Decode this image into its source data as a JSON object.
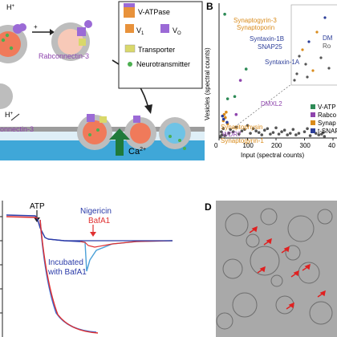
{
  "panelA": {
    "legend": {
      "vatpase": "V-ATPase",
      "v1": "V",
      "v1_sub": "1",
      "vo": "V",
      "vo_sub": "O",
      "transporter": "Transporter",
      "neurotransmitter": "Neurotransmitter"
    },
    "rabconnectin_label": "Rabconnectin-3",
    "rabconnectin_label2": "onnectin-3",
    "hplus": "H",
    "hplus_sup": "+",
    "hplus_top": "H",
    "hplus_top_sup": "+",
    "calcium": "Ca",
    "calcium_sup": "2+"
  },
  "panelB": {
    "letter": "B",
    "ylabel": "Vesicles (spectral counts)",
    "xlabel": "Input (spectral counts)",
    "legend": [
      {
        "label": "V-ATP",
        "color": "#2e8b57"
      },
      {
        "label": "Rabco",
        "color": "#8e44ad"
      },
      {
        "label": "Synap",
        "color": "#d98b1b"
      },
      {
        "label": "t-SNAR",
        "color": "#2c3e99"
      }
    ],
    "labels": {
      "synaptogyrin3": "Synaptogyrin-3",
      "synaptoporin": "Synaptoporin",
      "syntaxin1b": "Syntaxin-1B",
      "snap25": "SNAP25",
      "syntaxin1a": "Syntaxin-1A",
      "dm": "DM",
      "ro": "Ro",
      "dmxl2": "DMXL2",
      "synaptophysin": "Synaptophysin",
      "wdr7": "WDR7",
      "synaptogyrin1": "Synaptogyrin-1"
    },
    "chart_data": {
      "type": "scatter",
      "xlabel": "Input (spectral counts)",
      "ylabel": "Vesicles (spectral counts)",
      "xticks": [
        "0",
        "100",
        "200",
        "300",
        "40"
      ],
      "series": [
        {
          "name": "V-ATP",
          "points": [
            [
              20,
              790
            ],
            [
              55,
              265
            ],
            [
              95,
              440
            ],
            [
              30,
              250
            ]
          ]
        },
        {
          "name": "Rabco",
          "points": [
            [
              75,
              368
            ],
            [
              60,
              150
            ]
          ]
        },
        {
          "name": "Synap",
          "points": [
            [
              25,
              165
            ],
            [
              18,
              150
            ],
            [
              22,
              130
            ],
            [
              15,
              110
            ],
            [
              30,
              90
            ]
          ]
        },
        {
          "name": "t-SNAR",
          "points": [
            [
              12,
              140
            ],
            [
              16,
              120
            ],
            [
              28,
              100
            ]
          ]
        },
        {
          "name": "other",
          "points": [
            [
              5,
              10
            ],
            [
              10,
              20
            ],
            [
              20,
              15
            ],
            [
              35,
              30
            ],
            [
              50,
              40
            ],
            [
              70,
              25
            ],
            [
              90,
              55
            ],
            [
              110,
              30
            ],
            [
              130,
              45
            ],
            [
              150,
              20
            ],
            [
              170,
              60
            ],
            [
              190,
              35
            ],
            [
              210,
              25
            ],
            [
              230,
              50
            ],
            [
              250,
              30
            ],
            [
              270,
              20
            ],
            [
              300,
              40
            ],
            [
              320,
              15
            ],
            [
              340,
              30
            ],
            [
              360,
              25
            ],
            [
              8,
              40
            ],
            [
              15,
              60
            ],
            [
              40,
              55
            ],
            [
              60,
              70
            ],
            [
              80,
              45
            ],
            [
              100,
              80
            ],
            [
              120,
              60
            ],
            [
              140,
              35
            ],
            [
              160,
              50
            ],
            [
              180,
              25
            ],
            [
              200,
              65
            ],
            [
              220,
              40
            ],
            [
              240,
              20
            ],
            [
              260,
              55
            ],
            [
              280,
              30
            ],
            [
              310,
              60
            ],
            [
              330,
              45
            ],
            [
              350,
              20
            ],
            [
              365,
              35
            ],
            [
              370,
              10
            ]
          ]
        }
      ]
    }
  },
  "panelC": {
    "atp": "ATP",
    "nigericin": "Nigericin",
    "bafa1": "BafA1",
    "incubated_line1": "Incubated",
    "incubated_line2": "with BafA1",
    "chart_data": {
      "type": "line",
      "series": [
        {
          "name": "Nigericin",
          "color": "#3a6fd8"
        },
        {
          "name": "BafA1",
          "color": "#e03030"
        },
        {
          "name": "Incubated with BafA1",
          "color": "#2a3aa8"
        }
      ]
    }
  },
  "panelD": {
    "letter": "D"
  }
}
